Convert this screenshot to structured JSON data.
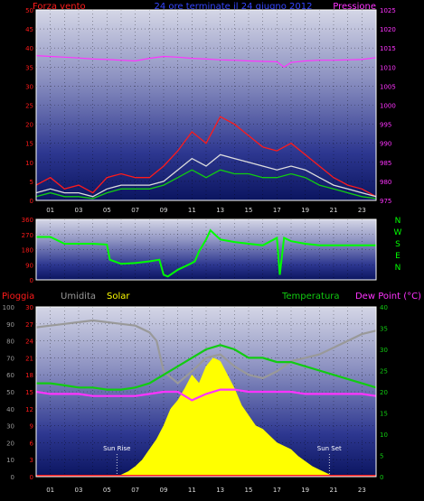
{
  "header": {
    "left_title": "Forza vento",
    "center_title": "24 ore terminate il 24 giugno 2012",
    "right_title": "Pressione"
  },
  "colors": {
    "red": "#ff1a1a",
    "magenta": "#ff33ff",
    "green": "#11cc11",
    "bright_green": "#00ff00",
    "yellow": "#ffff00",
    "gray": "#999999",
    "blue_title": "#3344ff",
    "navy": "#0b1560"
  },
  "hours": [
    "01",
    "03",
    "05",
    "07",
    "09",
    "11",
    "13",
    "15",
    "17",
    "19",
    "21",
    "23"
  ],
  "chart_data": [
    {
      "type": "line",
      "title": "24 ore terminate il 24 giugno 2012",
      "ylabel_left": "Forza vento",
      "ylabel_right": "Pressione",
      "x_unit": "hour",
      "xlim": [
        0,
        24
      ],
      "ylim_left": [
        0,
        50
      ],
      "ylim_right": [
        975,
        1025
      ],
      "yticks_left": [
        0,
        5,
        10,
        15,
        20,
        25,
        30,
        35,
        40,
        45,
        50
      ],
      "yticks_right": [
        975,
        980,
        985,
        990,
        995,
        1000,
        1005,
        1010,
        1015,
        1020,
        1025
      ],
      "series": [
        {
          "axis": "right",
          "color": "#ff33ff",
          "x": [
            0,
            1,
            2,
            3,
            4,
            5,
            6,
            7,
            8,
            9,
            10,
            11,
            12,
            13,
            14,
            15,
            16,
            17,
            17.5,
            18,
            19,
            20,
            21,
            22,
            23,
            24
          ],
          "values": [
            1013,
            1012.8,
            1012.6,
            1012.4,
            1012.1,
            1012,
            1011.8,
            1011.6,
            1012.3,
            1012.8,
            1012.6,
            1012.3,
            1012.1,
            1011.9,
            1011.8,
            1011.6,
            1011.5,
            1011.4,
            1010,
            1011.2,
            1011.6,
            1011.8,
            1011.8,
            1011.9,
            1012,
            1012.5
          ]
        },
        {
          "axis": "left",
          "color": "#ff1a1a",
          "x": [
            0,
            1,
            2,
            3,
            4,
            5,
            6,
            7,
            8,
            9,
            10,
            11,
            12,
            13,
            14,
            15,
            16,
            17,
            18,
            19,
            20,
            21,
            22,
            23,
            24
          ],
          "values": [
            4,
            6,
            3,
            4,
            2,
            6,
            7,
            6,
            6,
            9,
            13,
            18,
            15,
            22,
            20,
            17,
            14,
            13,
            15,
            12,
            9,
            6,
            4,
            3,
            1
          ]
        },
        {
          "axis": "left",
          "color": "#dddddd",
          "x": [
            0,
            1,
            2,
            3,
            4,
            5,
            6,
            7,
            8,
            9,
            10,
            11,
            12,
            13,
            14,
            15,
            16,
            17,
            18,
            19,
            20,
            21,
            22,
            23,
            24
          ],
          "values": [
            2,
            3,
            2,
            2,
            1,
            3,
            4,
            4,
            4,
            5,
            8,
            11,
            9,
            12,
            11,
            10,
            9,
            8,
            9,
            8,
            6,
            4,
            3,
            2,
            1
          ]
        },
        {
          "axis": "left",
          "color": "#11cc11",
          "x": [
            0,
            1,
            2,
            3,
            4,
            5,
            6,
            7,
            8,
            9,
            10,
            11,
            12,
            13,
            14,
            15,
            16,
            17,
            18,
            19,
            20,
            21,
            22,
            23,
            24
          ],
          "values": [
            1,
            2,
            1,
            1,
            0.5,
            2,
            3,
            3,
            3,
            4,
            6,
            8,
            6,
            8,
            7,
            7,
            6,
            6,
            7,
            6,
            4,
            3,
            2,
            1,
            0.5
          ]
        }
      ]
    },
    {
      "type": "line",
      "ylabel_left": "",
      "ylabel_right": "N W S E N",
      "x_unit": "hour",
      "xlim": [
        0,
        24
      ],
      "ylim": [
        0,
        360
      ],
      "yticks_left": [
        0,
        90,
        180,
        270,
        360
      ],
      "compass_labels": [
        "N",
        "W",
        "S",
        "E",
        "N"
      ],
      "series": [
        {
          "color": "#00ff00",
          "x": [
            0,
            1,
            2,
            3,
            4,
            5,
            5.2,
            6,
            7,
            8,
            8.7,
            9,
            9.3,
            10,
            10.5,
            11,
            11.2,
            11.5,
            12,
            12.3,
            13,
            14,
            15,
            16,
            17,
            17.2,
            17.5,
            18,
            19,
            19.5,
            20,
            21,
            22,
            23,
            24
          ],
          "values": [
            255,
            255,
            215,
            215,
            215,
            210,
            120,
            95,
            100,
            110,
            120,
            30,
            20,
            60,
            80,
            100,
            110,
            170,
            240,
            295,
            240,
            225,
            215,
            205,
            250,
            30,
            250,
            230,
            215,
            210,
            205,
            205,
            205,
            205,
            205
          ]
        }
      ]
    },
    {
      "type": "area",
      "ylabel_left": [
        "Pioggia",
        "Umidita",
        "Solar"
      ],
      "ylabel_right": [
        "Temperatura",
        "Dew Point (°C)"
      ],
      "x_unit": "hour",
      "xlim": [
        0,
        24
      ],
      "yticks_humidity": [
        0,
        10,
        20,
        30,
        40,
        50,
        60,
        70,
        80,
        90,
        100
      ],
      "yticks_rain": [
        0,
        3,
        6,
        9,
        12,
        15,
        18,
        21,
        24,
        27,
        30
      ],
      "yticks_temperature": [
        0,
        5,
        10,
        15,
        20,
        25,
        30,
        35,
        40
      ],
      "ylim_humidity": [
        0,
        100
      ],
      "ylim_rain": [
        0,
        30
      ],
      "ylim_temperature": [
        0,
        40
      ],
      "annotations": [
        {
          "label": "Sun Rise",
          "x": 5.7
        },
        {
          "label": "Sun Set",
          "x": 20.7
        }
      ],
      "series": [
        {
          "name": "Umidita",
          "axis": "humidity",
          "color": "#999999",
          "x": [
            0,
            1,
            2,
            3,
            4,
            5,
            6,
            7,
            8,
            8.5,
            9,
            10,
            11,
            12,
            13,
            14,
            15,
            16,
            17,
            18,
            19,
            20,
            21,
            22,
            23,
            24
          ],
          "values": [
            88,
            89,
            90,
            91,
            92,
            91,
            90,
            89,
            85,
            80,
            62,
            55,
            62,
            70,
            72,
            65,
            60,
            58,
            62,
            68,
            70,
            72,
            76,
            80,
            84,
            86
          ]
        },
        {
          "name": "Temperatura",
          "axis": "temperature",
          "color": "#11cc11",
          "x": [
            0,
            1,
            2,
            3,
            4,
            5,
            6,
            7,
            8,
            9,
            10,
            11,
            12,
            13,
            14,
            15,
            16,
            17,
            18,
            19,
            20,
            21,
            22,
            23,
            24
          ],
          "values": [
            22,
            22,
            21.5,
            21,
            21,
            20.5,
            20.5,
            21,
            22,
            24,
            26,
            28,
            30,
            31,
            30,
            28,
            28,
            27,
            27,
            26,
            25,
            24,
            23,
            22,
            21
          ]
        },
        {
          "name": "Dew Point",
          "axis": "temperature",
          "color": "#ff33ff",
          "x": [
            0,
            1,
            2,
            3,
            4,
            5,
            6,
            7,
            8,
            9,
            10,
            11,
            12,
            13,
            14,
            15,
            16,
            17,
            18,
            19,
            20,
            21,
            22,
            23,
            24
          ],
          "values": [
            20,
            19.5,
            19.5,
            19.5,
            19,
            19,
            19,
            19,
            19.5,
            20,
            20,
            18,
            19.5,
            20.5,
            20.5,
            20,
            20,
            20,
            20,
            19.5,
            19.5,
            19.5,
            19.5,
            19.5,
            19
          ]
        },
        {
          "name": "Solar",
          "axis": "humidity",
          "color": "#ffff00",
          "x": [
            5.5,
            6,
            6.5,
            7,
            7.5,
            8,
            8.5,
            9,
            9.5,
            10,
            10.5,
            11,
            11.5,
            12,
            12.5,
            13,
            13.5,
            14,
            14.5,
            15,
            15.5,
            16,
            16.5,
            17,
            17.5,
            18,
            18.5,
            19,
            19.5,
            20,
            20.5,
            21
          ],
          "values": [
            0,
            1,
            3,
            6,
            10,
            16,
            22,
            30,
            40,
            45,
            52,
            60,
            55,
            65,
            70,
            68,
            60,
            52,
            42,
            36,
            30,
            28,
            24,
            20,
            18,
            16,
            12,
            9,
            6,
            4,
            2,
            0
          ]
        }
      ]
    }
  ]
}
